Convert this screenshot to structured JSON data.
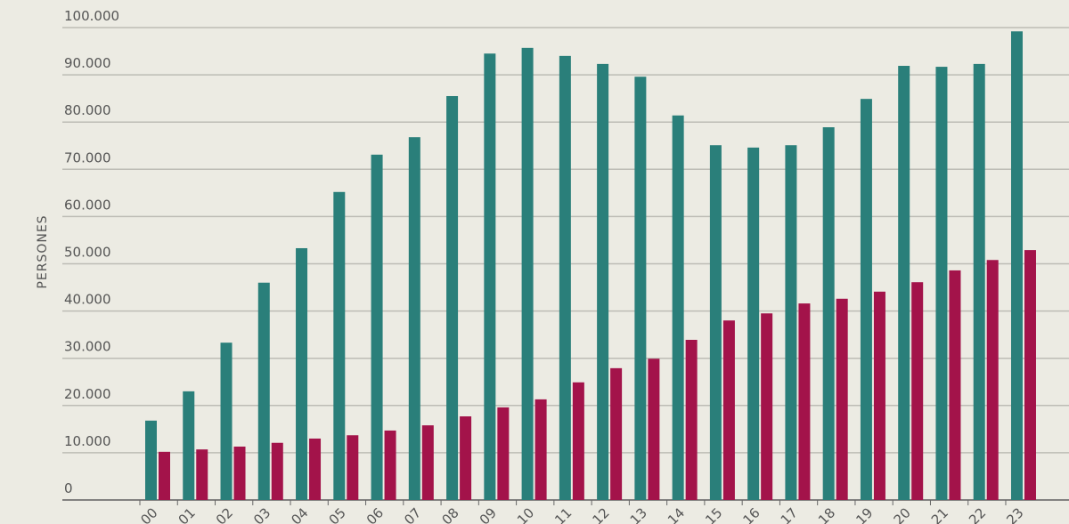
{
  "chart_data": {
    "type": "bar",
    "y_label": "PERSONES",
    "categories": [
      "00",
      "01",
      "02",
      "03",
      "04",
      "05",
      "06",
      "07",
      "08",
      "09",
      "10",
      "11",
      "12",
      "13",
      "14",
      "15",
      "16",
      "17",
      "18",
      "19",
      "20",
      "21",
      "22",
      "23"
    ],
    "series": [
      {
        "color": "#2a7f7a",
        "values": [
          16800,
          23000,
          33300,
          46000,
          53300,
          65200,
          73100,
          76800,
          85500,
          94500,
          95700,
          94000,
          92300,
          89600,
          81400,
          75100,
          74600,
          75100,
          78900,
          84900,
          91900,
          91700,
          92300,
          99200
        ]
      },
      {
        "color": "#a3134a",
        "values": [
          10200,
          10700,
          11300,
          12100,
          13000,
          13700,
          14700,
          15800,
          17700,
          19600,
          21300,
          24900,
          27900,
          29900,
          33900,
          38000,
          39500,
          41600,
          42600,
          44100,
          46100,
          48600,
          50800,
          52900
        ]
      }
    ],
    "ylim": [
      0,
      100000
    ],
    "yticks": [
      0,
      {
        "value": 10000,
        "label": "10.000"
      },
      {
        "value": 20000,
        "label": "20.000"
      },
      {
        "value": 30000,
        "label": "30.000"
      },
      {
        "value": 40000,
        "label": "40.000"
      },
      {
        "value": 50000,
        "label": "50.000"
      },
      {
        "value": 60000,
        "label": "60.000"
      },
      {
        "value": 70000,
        "label": "70.000"
      },
      {
        "value": 80000,
        "label": "80.000"
      },
      {
        "value": 90000,
        "label": "90.000"
      },
      {
        "value": 100000,
        "label": "100.000"
      }
    ],
    "grid": true
  }
}
